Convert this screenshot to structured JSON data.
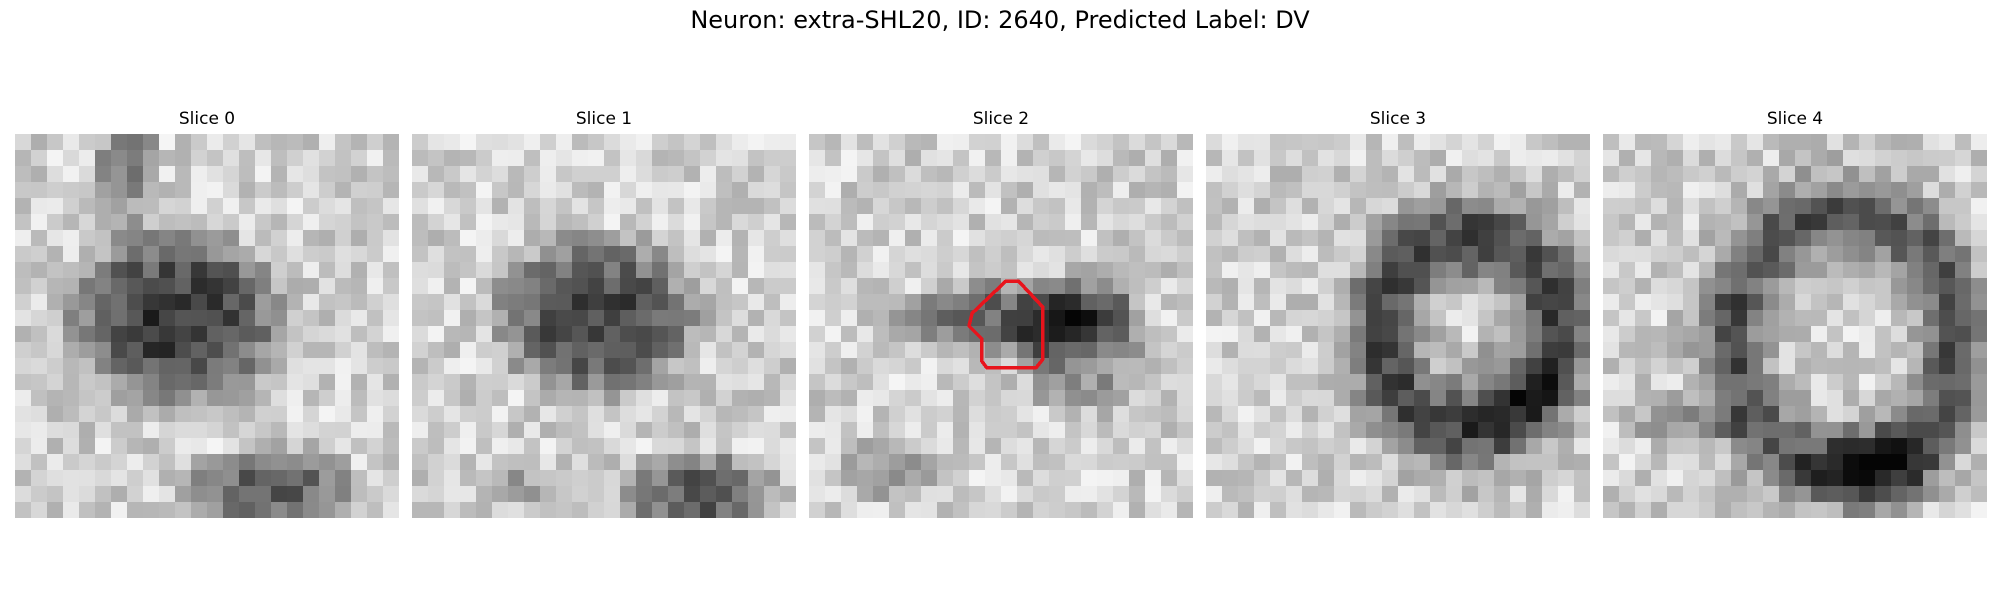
{
  "figure": {
    "title": "Neuron: extra-SHL20, ID: 2640, Predicted Label: DV"
  },
  "panels": [
    {
      "title": "Slice 0"
    },
    {
      "title": "Slice 1"
    },
    {
      "title": "Slice 2"
    },
    {
      "title": "Slice 3"
    },
    {
      "title": "Slice 4"
    }
  ],
  "contour_color": "#e8141c",
  "colormap": "grayscale"
}
